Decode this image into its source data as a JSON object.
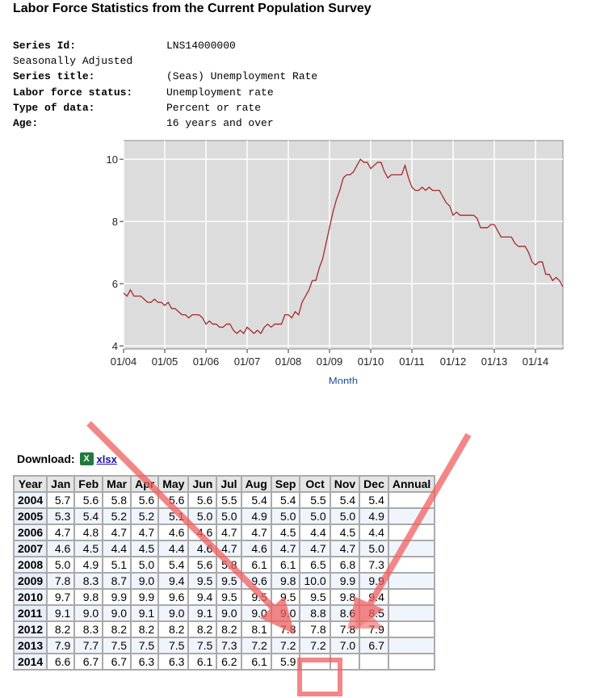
{
  "title": "Labor Force Statistics from the Current Population Survey",
  "meta": [
    {
      "key": "Series Id:",
      "value": "LNS14000000"
    },
    {
      "key": "Seasonally Adjusted",
      "value": ""
    },
    {
      "key": "Series title:",
      "value": "(Seas) Unemployment Rate"
    },
    {
      "key": "Labor force status:",
      "value": "Unemployment rate"
    },
    {
      "key": "Type of data:",
      "value": "Percent or rate"
    },
    {
      "key": "Age:",
      "value": "16 years and over"
    }
  ],
  "chart_data": {
    "type": "line",
    "xlabel": "Month",
    "ylabel": "",
    "ylim": [
      3.9,
      10.6
    ],
    "yticks": [
      4,
      6,
      8,
      10
    ],
    "xticks": [
      "01/04",
      "01/05",
      "01/06",
      "01/07",
      "01/08",
      "01/09",
      "01/10",
      "01/11",
      "01/12",
      "01/13",
      "01/14"
    ],
    "grid": true,
    "line_color": "#a52a2a",
    "source": "monthly values from table, Jan 2004 to Sep 2014"
  },
  "download": {
    "label": "Download:",
    "link": "xlsx",
    "icon": "excel-icon"
  },
  "table": {
    "headers": [
      "Year",
      "Jan",
      "Feb",
      "Mar",
      "Apr",
      "May",
      "Jun",
      "Jul",
      "Aug",
      "Sep",
      "Oct",
      "Nov",
      "Dec",
      "Annual"
    ],
    "rows": [
      [
        "2004",
        "5.7",
        "5.6",
        "5.8",
        "5.6",
        "5.6",
        "5.6",
        "5.5",
        "5.4",
        "5.4",
        "5.5",
        "5.4",
        "5.4",
        ""
      ],
      [
        "2005",
        "5.3",
        "5.4",
        "5.2",
        "5.2",
        "5.1",
        "5.0",
        "5.0",
        "4.9",
        "5.0",
        "5.0",
        "5.0",
        "4.9",
        ""
      ],
      [
        "2006",
        "4.7",
        "4.8",
        "4.7",
        "4.7",
        "4.6",
        "4.6",
        "4.7",
        "4.7",
        "4.5",
        "4.4",
        "4.5",
        "4.4",
        ""
      ],
      [
        "2007",
        "4.6",
        "4.5",
        "4.4",
        "4.5",
        "4.4",
        "4.6",
        "4.7",
        "4.6",
        "4.7",
        "4.7",
        "4.7",
        "5.0",
        ""
      ],
      [
        "2008",
        "5.0",
        "4.9",
        "5.1",
        "5.0",
        "5.4",
        "5.6",
        "5.8",
        "6.1",
        "6.1",
        "6.5",
        "6.8",
        "7.3",
        ""
      ],
      [
        "2009",
        "7.8",
        "8.3",
        "8.7",
        "9.0",
        "9.4",
        "9.5",
        "9.5",
        "9.6",
        "9.8",
        "10.0",
        "9.9",
        "9.9",
        ""
      ],
      [
        "2010",
        "9.7",
        "9.8",
        "9.9",
        "9.9",
        "9.6",
        "9.4",
        "9.5",
        "9.5",
        "9.5",
        "9.5",
        "9.8",
        "9.4",
        ""
      ],
      [
        "2011",
        "9.1",
        "9.0",
        "9.0",
        "9.1",
        "9.0",
        "9.1",
        "9.0",
        "9.0",
        "9.0",
        "8.8",
        "8.6",
        "8.5",
        ""
      ],
      [
        "2012",
        "8.2",
        "8.3",
        "8.2",
        "8.2",
        "8.2",
        "8.2",
        "8.2",
        "8.1",
        "7.8",
        "7.8",
        "7.8",
        "7.9",
        ""
      ],
      [
        "2013",
        "7.9",
        "7.7",
        "7.5",
        "7.5",
        "7.5",
        "7.5",
        "7.3",
        "7.2",
        "7.2",
        "7.2",
        "7.0",
        "6.7",
        ""
      ],
      [
        "2014",
        "6.6",
        "6.7",
        "6.7",
        "6.3",
        "6.3",
        "6.1",
        "6.2",
        "6.1",
        "5.9",
        "",
        "",
        "",
        ""
      ]
    ]
  },
  "annotation_color": "#f06060"
}
